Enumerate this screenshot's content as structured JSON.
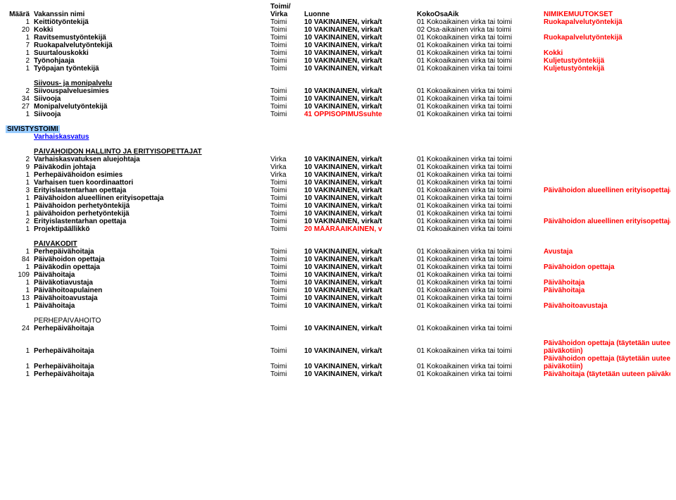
{
  "columns": {
    "maara": "Määrä",
    "nimi": "Vakanssin nimi",
    "toimi_virka_top": "Toimi/",
    "toimi_virka": "Virka",
    "luonne": "Luonne",
    "koko": "KokoOsaAik",
    "nimik": "NIMIKEMUUTOKSET"
  },
  "luonne": {
    "vak_t": "10 VAKINAINEN, virka/t",
    "oppi": "41 OPPISOPIMUSsuhte",
    "maara": "20 MÄÄRÄAIKAINEN, v"
  },
  "koko": {
    "k01": "01 Kokoaikainen virka tai toimi",
    "k02": "02 Osa-aikainen virka tai toimi"
  },
  "rows_top": [
    {
      "m": "1",
      "n": "Keittiötyöntekijä",
      "v": "Toimi",
      "l": "vak_t",
      "k": "k01",
      "nm": "Ruokapalvelutyöntekijä"
    },
    {
      "m": "20",
      "n": "Kokki",
      "v": "Toimi",
      "l": "vak_t",
      "k": "k02",
      "nm": ""
    },
    {
      "m": "1",
      "n": "Ravitsemustyöntekijä",
      "v": "Toimi",
      "l": "vak_t",
      "k": "k01",
      "nm": "Ruokapalvelutyöntekijä"
    },
    {
      "m": "7",
      "n": "Ruokapalvelutyöntekijä",
      "v": "Toimi",
      "l": "vak_t",
      "k": "k01",
      "nm": ""
    },
    {
      "m": "1",
      "n": "Suurtalouskokki",
      "v": "Toimi",
      "l": "vak_t",
      "k": "k01",
      "nm": "Kokki"
    },
    {
      "m": "2",
      "n": "Työnohjaaja",
      "v": "Toimi",
      "l": "vak_t",
      "k": "k01",
      "nm": "Kuljetustyöntekijä"
    },
    {
      "m": "1",
      "n": "Työpajan työntekijä",
      "v": "Toimi",
      "l": "vak_t",
      "k": "k01",
      "nm": "Kuljetustyöntekijä"
    }
  ],
  "section_siivous": "Siivous- ja monipalvelu",
  "rows_siivous": [
    {
      "m": "2",
      "n": "Siivouspalveluesimies",
      "v": "Toimi",
      "l": "vak_t",
      "k": "k01",
      "nm": ""
    },
    {
      "m": "34",
      "n": "Siivooja",
      "v": "Toimi",
      "l": "vak_t",
      "k": "k01",
      "nm": ""
    },
    {
      "m": "27",
      "n": "Monipalvelutyöntekijä",
      "v": "Toimi",
      "l": "vak_t",
      "k": "k01",
      "nm": ""
    },
    {
      "m": "1",
      "n": "Siivooja",
      "v": "Toimi",
      "l": "oppi",
      "k": "k01",
      "nm": ""
    }
  ],
  "section_sivistys": "SIVISTYSTOIMI",
  "section_varhais": "Varhaiskasvatus",
  "section_paiv_hallinto": "PÄIVÄHOIDON HALLINTO JA ERITYISOPETTAJAT",
  "rows_varhais": [
    {
      "m": "2",
      "n": "Varhaiskasvatuksen aluejohtaja",
      "v": "Virka",
      "l": "vak_t",
      "k": "k01",
      "nm": ""
    },
    {
      "m": "9",
      "n": "Päiväkodin johtaja",
      "v": "Virka",
      "l": "vak_t",
      "k": "k01",
      "nm": ""
    },
    {
      "m": "1",
      "n": "Perhepäivähoidon esimies",
      "v": "Virka",
      "l": "vak_t",
      "k": "k01",
      "nm": ""
    },
    {
      "m": "1",
      "n": "Varhaisen tuen koordinaattori",
      "v": "Toimi",
      "l": "vak_t",
      "k": "k01",
      "nm": ""
    },
    {
      "m": "3",
      "n": "Erityislastentarhan opettaja",
      "v": "Toimi",
      "l": "vak_t",
      "k": "k01",
      "nm": "Päivähoidon alueellinen erityisopettaja"
    },
    {
      "m": "1",
      "n": "Päivähoidon alueellinen erityisopettaja",
      "v": "Toimi",
      "l": "vak_t",
      "k": "k01",
      "nm": ""
    },
    {
      "m": "1",
      "n": "Päivähoidon perhetyöntekijä",
      "v": "Toimi",
      "l": "vak_t",
      "k": "k01",
      "nm": ""
    },
    {
      "m": "1",
      "n": "päivähoidon perhetyöntekijä",
      "v": "Toimi",
      "l": "vak_t",
      "k": "k01",
      "nm": ""
    },
    {
      "m": "2",
      "n": "Erityislastentarhan opettaja",
      "v": "Toimi",
      "l": "vak_t",
      "k": "k01",
      "nm": "Päivähoidon alueellinen erityisopettaja"
    },
    {
      "m": "1",
      "n": "Projektipäällikkö",
      "v": "Toimi",
      "l": "maara",
      "k": "k01",
      "nm": ""
    }
  ],
  "section_paivakodit": "PÄIVÄKODIT",
  "rows_paivakodit": [
    {
      "m": "1",
      "n": "Perhepäivähoitaja",
      "v": "Toimi",
      "l": "vak_t",
      "k": "k01",
      "nm": "Avustaja"
    },
    {
      "m": "84",
      "n": "Päivähoidon opettaja",
      "v": "Toimi",
      "l": "vak_t",
      "k": "k01",
      "nm": ""
    },
    {
      "m": "1",
      "n": "Päiväkodin opettaja",
      "v": "Toimi",
      "l": "vak_t",
      "k": "k01",
      "nm": "Päivähoidon opettaja"
    },
    {
      "m": "109",
      "n": "Päivähoitaja",
      "v": "Toimi",
      "l": "vak_t",
      "k": "k01",
      "nm": ""
    },
    {
      "m": "1",
      "n": "Päiväkotiavustaja",
      "v": "Toimi",
      "l": "vak_t",
      "k": "k01",
      "nm": "Päivähoitaja"
    },
    {
      "m": "1",
      "n": "Päivähoitoapulainen",
      "v": "Toimi",
      "l": "vak_t",
      "k": "k01",
      "nm": "Päivähoitaja"
    },
    {
      "m": "13",
      "n": "Päivähoitoavustaja",
      "v": "Toimi",
      "l": "vak_t",
      "k": "k01",
      "nm": ""
    },
    {
      "m": "1",
      "n": "Päivähoitaja",
      "v": "Toimi",
      "l": "vak_t",
      "k": "k01",
      "nm": "Päivähoitoavustaja"
    }
  ],
  "section_perhe": "PERHEPÄIVÄHOITO",
  "rows_perhe": [
    {
      "m": "24",
      "n": "Perhepäivähoitaja",
      "v": "Toimi",
      "l": "vak_t",
      "k": "k01",
      "nm": ""
    },
    {
      "m": "1",
      "n": "Perhepäivähoitaja",
      "v": "Toimi",
      "l": "vak_t",
      "k": "k01",
      "nm": "Päivähoidon opettaja (täytetään uuteen päiväkotiin)",
      "twoLine": true
    },
    {
      "m": "1",
      "n": "Perhepäivähoitaja",
      "v": "Toimi",
      "l": "vak_t",
      "k": "k01",
      "nm": "Päivähoidon opettaja (täytetään uuteen päiväkotiin)",
      "twoLine": true
    },
    {
      "m": "1",
      "n": "Perhepäivähoitaja",
      "v": "Toimi",
      "l": "vak_t",
      "k": "k01",
      "nm": "Päivähoitaja (täytetään uuteen päiväkotiin)"
    }
  ]
}
